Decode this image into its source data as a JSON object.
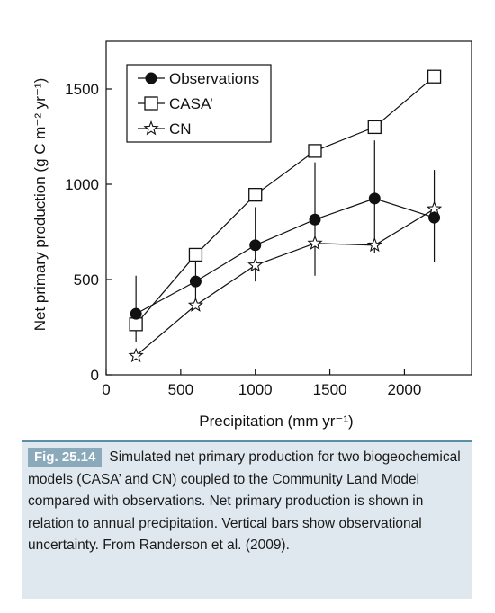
{
  "chart_data": {
    "type": "line",
    "x": [
      200,
      600,
      1000,
      1400,
      1800,
      2200
    ],
    "xlabel": "Precipitation (mm yr⁻¹)",
    "ylabel": "Net primary production (g C m⁻² yr⁻¹)",
    "xlim": [
      0,
      2450
    ],
    "ylim": [
      0,
      1750
    ],
    "xticks": [
      "0",
      "500",
      "1000",
      "1500",
      "2000"
    ],
    "xtick_values": [
      0,
      500,
      1000,
      1500,
      2000
    ],
    "yticks": [
      "0",
      "500",
      "1000",
      "1500"
    ],
    "ytick_values": [
      0,
      500,
      1000,
      1500
    ],
    "grid": false,
    "legend_position": "top-left",
    "series": [
      {
        "name": "Observations",
        "marker": "filled-circle",
        "values": [
          320,
          490,
          680,
          815,
          925,
          825
        ],
        "error_low": [
          170,
          390,
          490,
          520,
          640,
          590
        ],
        "error_high": [
          520,
          660,
          880,
          1115,
          1230,
          1075
        ]
      },
      {
        "name": "CASA’",
        "marker": "open-square",
        "values": [
          265,
          630,
          945,
          1175,
          1300,
          1565
        ]
      },
      {
        "name": "CN",
        "marker": "open-star",
        "values": [
          100,
          365,
          575,
          690,
          680,
          870
        ]
      }
    ]
  },
  "caption": {
    "label": "Fig. 25.14",
    "text": "Simulated net primary production for two biogeochemical models (CASA’ and CN) coupled to the Community Land Model compared with observations. Net primary production is shown in relation to annual precipitation. Vertical bars show observational uncertainty. From Randerson et al. (2009)."
  }
}
